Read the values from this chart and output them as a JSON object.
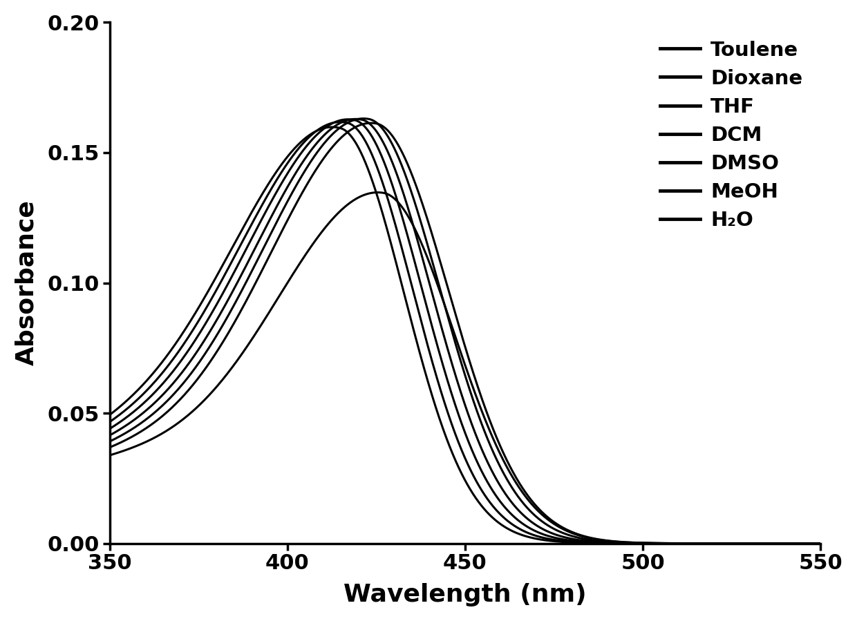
{
  "solvents_legend": [
    "Toulene",
    "Dioxane",
    "THF",
    "DCM",
    "DMSO",
    "MeOH",
    "H₂O"
  ],
  "xlabel": "Wavelength (nm)",
  "ylabel": "Absorbance",
  "xlim": [
    350,
    550
  ],
  "ylim": [
    0.0,
    0.2
  ],
  "yticks": [
    0.0,
    0.05,
    0.1,
    0.15,
    0.2
  ],
  "xticks": [
    350,
    400,
    450,
    500,
    550
  ],
  "line_color": "#000000",
  "background_color": "#ffffff",
  "solvent_params": [
    {
      "peak_wl": 415,
      "peak_abs": 0.15,
      "sig_l": 30,
      "sig_r": 18,
      "base": 0.035
    },
    {
      "peak_wl": 417,
      "peak_abs": 0.153,
      "sig_l": 30,
      "sig_r": 18.5,
      "base": 0.034
    },
    {
      "peak_wl": 419,
      "peak_abs": 0.155,
      "sig_l": 30,
      "sig_r": 19,
      "base": 0.033
    },
    {
      "peak_wl": 421,
      "peak_abs": 0.156,
      "sig_l": 30,
      "sig_r": 19.5,
      "base": 0.032
    },
    {
      "peak_wl": 423,
      "peak_abs": 0.157,
      "sig_l": 30,
      "sig_r": 20,
      "base": 0.031
    },
    {
      "peak_wl": 425,
      "peak_abs": 0.156,
      "sig_l": 30,
      "sig_r": 20.5,
      "base": 0.03
    },
    {
      "peak_wl": 427,
      "peak_abs": 0.13,
      "sig_l": 30,
      "sig_r": 20,
      "base": 0.029
    }
  ],
  "line_width": 2.2,
  "legend_fontsize": 21,
  "tick_fontsize": 22,
  "label_fontsize": 26
}
